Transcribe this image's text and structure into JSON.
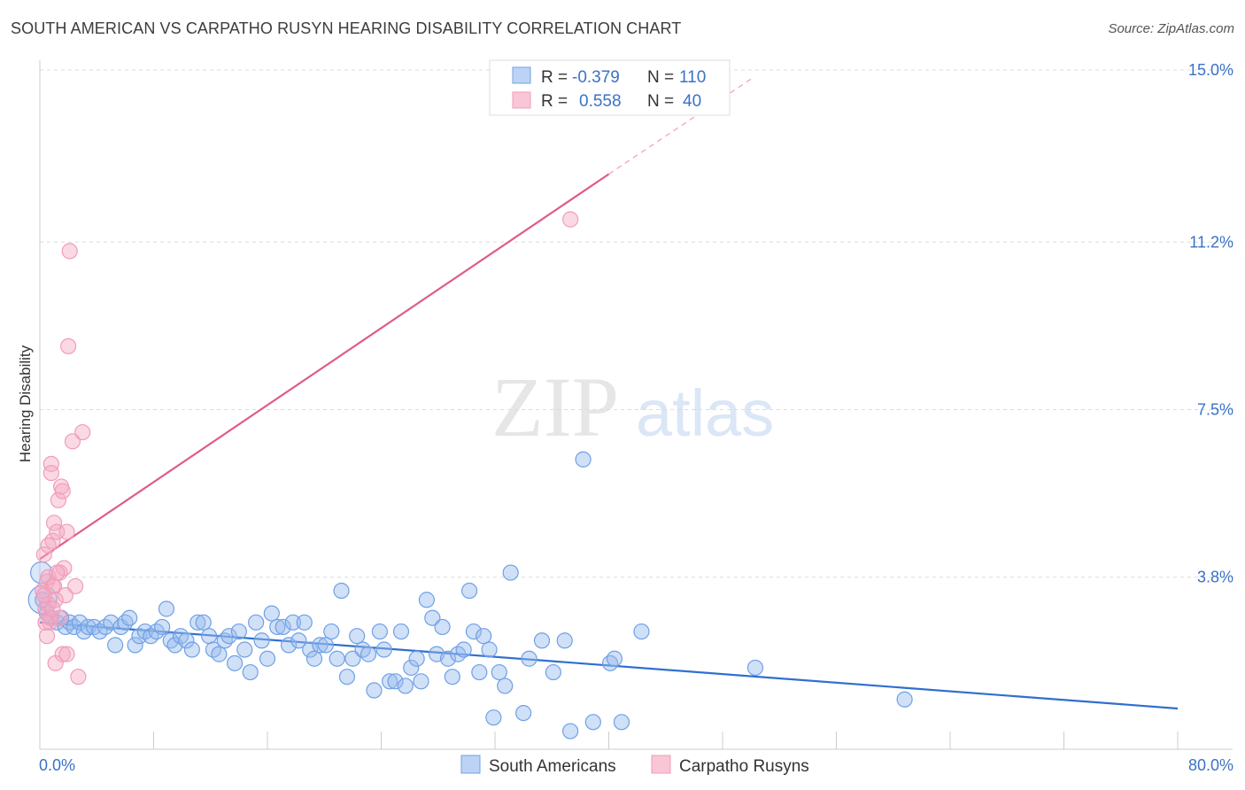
{
  "header": {
    "title": "SOUTH AMERICAN VS CARPATHO RUSYN HEARING DISABILITY CORRELATION CHART",
    "source": "Source: ZipAtlas.com"
  },
  "watermark": {
    "zip": "ZIP",
    "atlas": "atlas"
  },
  "chart_data": {
    "type": "scatter",
    "title": "SOUTH AMERICAN VS CARPATHO RUSYN HEARING DISABILITY CORRELATION CHART",
    "xlabel": "",
    "ylabel": "Hearing Disability",
    "xlim": [
      0,
      80
    ],
    "ylim": [
      0,
      15.0
    ],
    "x_tick_labels": [
      "0.0%",
      "80.0%"
    ],
    "y_ticks": [
      3.8,
      7.5,
      11.2,
      15.0
    ],
    "y_tick_labels": [
      "3.8%",
      "7.5%",
      "11.2%",
      "15.0%"
    ],
    "grid": "horizontal-dashed",
    "legend_position": "top-center",
    "colors": {
      "south": "#6fa0e6",
      "south_line": "#2f6fcf",
      "rusyn": "#f19cb8",
      "rusyn_line": "#e05a8a"
    },
    "series": [
      {
        "name": "South Americans",
        "r_label": "R =",
        "r_value": "-0.379",
        "n_label": "N =",
        "n_value": "110",
        "trend": {
          "x0": 0,
          "y0": 2.8,
          "x1": 80,
          "y1": 0.9
        },
        "points": [
          [
            0.2,
            3.3
          ],
          [
            0.5,
            3.0
          ],
          [
            0.8,
            2.9
          ],
          [
            1.2,
            2.8
          ],
          [
            1.5,
            2.9
          ],
          [
            1.8,
            2.7
          ],
          [
            2.1,
            2.8
          ],
          [
            2.4,
            2.7
          ],
          [
            2.8,
            2.8
          ],
          [
            3.1,
            2.6
          ],
          [
            3.4,
            2.7
          ],
          [
            3.8,
            2.7
          ],
          [
            4.2,
            2.6
          ],
          [
            4.6,
            2.7
          ],
          [
            5.0,
            2.8
          ],
          [
            5.3,
            2.3
          ],
          [
            5.7,
            2.7
          ],
          [
            6.0,
            2.8
          ],
          [
            6.3,
            2.9
          ],
          [
            6.7,
            2.3
          ],
          [
            7.0,
            2.5
          ],
          [
            7.4,
            2.6
          ],
          [
            7.8,
            2.5
          ],
          [
            8.2,
            2.6
          ],
          [
            8.6,
            2.7
          ],
          [
            8.9,
            3.1
          ],
          [
            9.2,
            2.4
          ],
          [
            9.5,
            2.3
          ],
          [
            9.9,
            2.5
          ],
          [
            10.3,
            2.4
          ],
          [
            10.7,
            2.2
          ],
          [
            11.1,
            2.8
          ],
          [
            11.5,
            2.8
          ],
          [
            11.9,
            2.5
          ],
          [
            12.2,
            2.2
          ],
          [
            12.6,
            2.1
          ],
          [
            13.0,
            2.4
          ],
          [
            13.3,
            2.5
          ],
          [
            13.7,
            1.9
          ],
          [
            14.0,
            2.6
          ],
          [
            14.4,
            2.2
          ],
          [
            14.8,
            1.7
          ],
          [
            15.2,
            2.8
          ],
          [
            15.6,
            2.4
          ],
          [
            16.0,
            2.0
          ],
          [
            16.3,
            3.0
          ],
          [
            16.7,
            2.7
          ],
          [
            17.1,
            2.7
          ],
          [
            17.5,
            2.3
          ],
          [
            17.8,
            2.8
          ],
          [
            18.2,
            2.4
          ],
          [
            18.6,
            2.8
          ],
          [
            19.0,
            2.2
          ],
          [
            19.3,
            2.0
          ],
          [
            19.7,
            2.3
          ],
          [
            20.1,
            2.3
          ],
          [
            20.5,
            2.6
          ],
          [
            20.9,
            2.0
          ],
          [
            21.2,
            3.5
          ],
          [
            21.6,
            1.6
          ],
          [
            22.0,
            2.0
          ],
          [
            22.3,
            2.5
          ],
          [
            22.7,
            2.2
          ],
          [
            23.1,
            2.1
          ],
          [
            23.5,
            1.3
          ],
          [
            23.9,
            2.6
          ],
          [
            24.2,
            2.2
          ],
          [
            24.6,
            1.5
          ],
          [
            25.0,
            1.5
          ],
          [
            25.4,
            2.6
          ],
          [
            25.7,
            1.4
          ],
          [
            26.1,
            1.8
          ],
          [
            26.5,
            2.0
          ],
          [
            26.8,
            1.5
          ],
          [
            27.2,
            3.3
          ],
          [
            27.6,
            2.9
          ],
          [
            27.9,
            2.1
          ],
          [
            28.3,
            2.7
          ],
          [
            28.7,
            2.0
          ],
          [
            29.0,
            1.6
          ],
          [
            29.4,
            2.1
          ],
          [
            29.8,
            2.2
          ],
          [
            30.2,
            3.5
          ],
          [
            30.5,
            2.6
          ],
          [
            30.9,
            1.7
          ],
          [
            31.2,
            2.5
          ],
          [
            31.6,
            2.2
          ],
          [
            31.9,
            0.7
          ],
          [
            32.3,
            1.7
          ],
          [
            32.7,
            1.4
          ],
          [
            33.1,
            3.9
          ],
          [
            34.0,
            0.8
          ],
          [
            34.4,
            2.0
          ],
          [
            35.3,
            2.4
          ],
          [
            36.1,
            1.7
          ],
          [
            36.9,
            2.4
          ],
          [
            37.3,
            0.4
          ],
          [
            38.2,
            6.4
          ],
          [
            38.9,
            0.6
          ],
          [
            40.1,
            1.9
          ],
          [
            40.4,
            2.0
          ],
          [
            40.9,
            0.6
          ],
          [
            42.3,
            2.6
          ],
          [
            50.3,
            1.8
          ],
          [
            60.8,
            1.1
          ]
        ]
      },
      {
        "name": "Carpatho Rusyns",
        "r_label": "R =",
        "r_value": "0.558",
        "n_label": "N =",
        "n_value": "40",
        "trend": {
          "x0": 0,
          "y0": 4.2,
          "x1": 40,
          "y1": 12.7
        },
        "trend_dashed_end": {
          "x": 50,
          "y": 14.8
        },
        "points": [
          [
            0.2,
            3.5
          ],
          [
            0.3,
            4.3
          ],
          [
            0.4,
            3.1
          ],
          [
            0.5,
            3.7
          ],
          [
            0.5,
            2.5
          ],
          [
            0.6,
            3.2
          ],
          [
            0.7,
            2.8
          ],
          [
            0.8,
            6.3
          ],
          [
            0.9,
            3.6
          ],
          [
            1.0,
            5.0
          ],
          [
            0.6,
            3.8
          ],
          [
            0.7,
            2.9
          ],
          [
            0.9,
            4.6
          ],
          [
            1.0,
            3.6
          ],
          [
            1.1,
            1.9
          ],
          [
            1.2,
            4.8
          ],
          [
            1.3,
            5.5
          ],
          [
            1.4,
            2.9
          ],
          [
            1.5,
            5.8
          ],
          [
            1.6,
            2.1
          ],
          [
            1.7,
            4.0
          ],
          [
            1.8,
            3.4
          ],
          [
            1.9,
            4.8
          ],
          [
            2.0,
            8.9
          ],
          [
            2.1,
            11.0
          ],
          [
            2.3,
            6.8
          ],
          [
            2.5,
            3.6
          ],
          [
            2.7,
            1.6
          ],
          [
            3.0,
            7.0
          ],
          [
            1.4,
            3.9
          ],
          [
            0.8,
            6.1
          ],
          [
            0.4,
            2.8
          ],
          [
            0.6,
            4.5
          ],
          [
            1.1,
            3.3
          ],
          [
            1.2,
            3.9
          ],
          [
            1.6,
            5.7
          ],
          [
            1.9,
            2.1
          ],
          [
            0.3,
            3.4
          ],
          [
            0.9,
            3.1
          ],
          [
            37.3,
            11.7
          ]
        ]
      }
    ]
  }
}
